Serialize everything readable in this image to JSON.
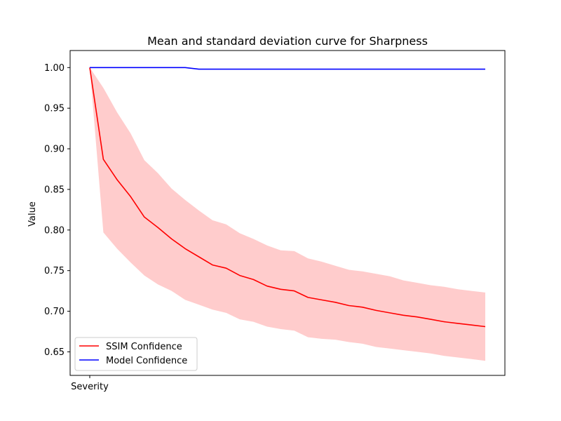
{
  "chart_data": {
    "type": "line",
    "title": "Mean and standard deviation curve for Sharpness",
    "xlabel": "",
    "ylabel": "Value",
    "x_tick_labels": [
      "Severity"
    ],
    "ylim": [
      0.621,
      1.021
    ],
    "y_ticks": [
      0.65,
      0.7,
      0.75,
      0.8,
      0.85,
      0.9,
      0.95,
      1.0
    ],
    "y_tick_labels": [
      "0.65",
      "0.70",
      "0.75",
      "0.80",
      "0.85",
      "0.90",
      "0.95",
      "1.00"
    ],
    "grid": false,
    "legend_position": "lower-left",
    "x": [
      0,
      1,
      2,
      3,
      4,
      5,
      6,
      7,
      8,
      9,
      10,
      11,
      12,
      13,
      14,
      15,
      16,
      17,
      18,
      19,
      20,
      21,
      22,
      23,
      24,
      25,
      26,
      27,
      28,
      29
    ],
    "series": [
      {
        "name": "SSIM Confidence",
        "color": "#ff0000",
        "band_color": "#ff0000",
        "band_opacity": 0.2,
        "values": [
          1.0,
          0.887,
          0.862,
          0.841,
          0.816,
          0.803,
          0.789,
          0.777,
          0.767,
          0.757,
          0.753,
          0.744,
          0.739,
          0.731,
          0.727,
          0.725,
          0.717,
          0.714,
          0.711,
          0.707,
          0.705,
          0.701,
          0.698,
          0.695,
          0.693,
          0.69,
          0.687,
          0.685,
          0.683,
          0.681
        ],
        "upper": [
          1.0,
          0.975,
          0.945,
          0.919,
          0.886,
          0.87,
          0.851,
          0.837,
          0.824,
          0.812,
          0.807,
          0.796,
          0.789,
          0.781,
          0.775,
          0.774,
          0.765,
          0.761,
          0.756,
          0.751,
          0.749,
          0.746,
          0.743,
          0.738,
          0.735,
          0.732,
          0.73,
          0.727,
          0.725,
          0.723
        ],
        "lower": [
          1.0,
          0.797,
          0.777,
          0.76,
          0.744,
          0.733,
          0.725,
          0.714,
          0.708,
          0.702,
          0.698,
          0.69,
          0.687,
          0.681,
          0.678,
          0.676,
          0.668,
          0.666,
          0.665,
          0.662,
          0.66,
          0.656,
          0.654,
          0.652,
          0.65,
          0.648,
          0.645,
          0.643,
          0.641,
          0.639
        ]
      },
      {
        "name": "Model Confidence",
        "color": "#0000ff",
        "values": [
          1.0,
          1.0,
          1.0,
          1.0,
          1.0,
          1.0,
          1.0,
          1.0,
          0.998,
          0.998,
          0.998,
          0.998,
          0.998,
          0.998,
          0.998,
          0.998,
          0.998,
          0.998,
          0.998,
          0.998,
          0.998,
          0.998,
          0.998,
          0.998,
          0.998,
          0.998,
          0.998,
          0.998,
          0.998,
          0.998
        ]
      }
    ]
  }
}
